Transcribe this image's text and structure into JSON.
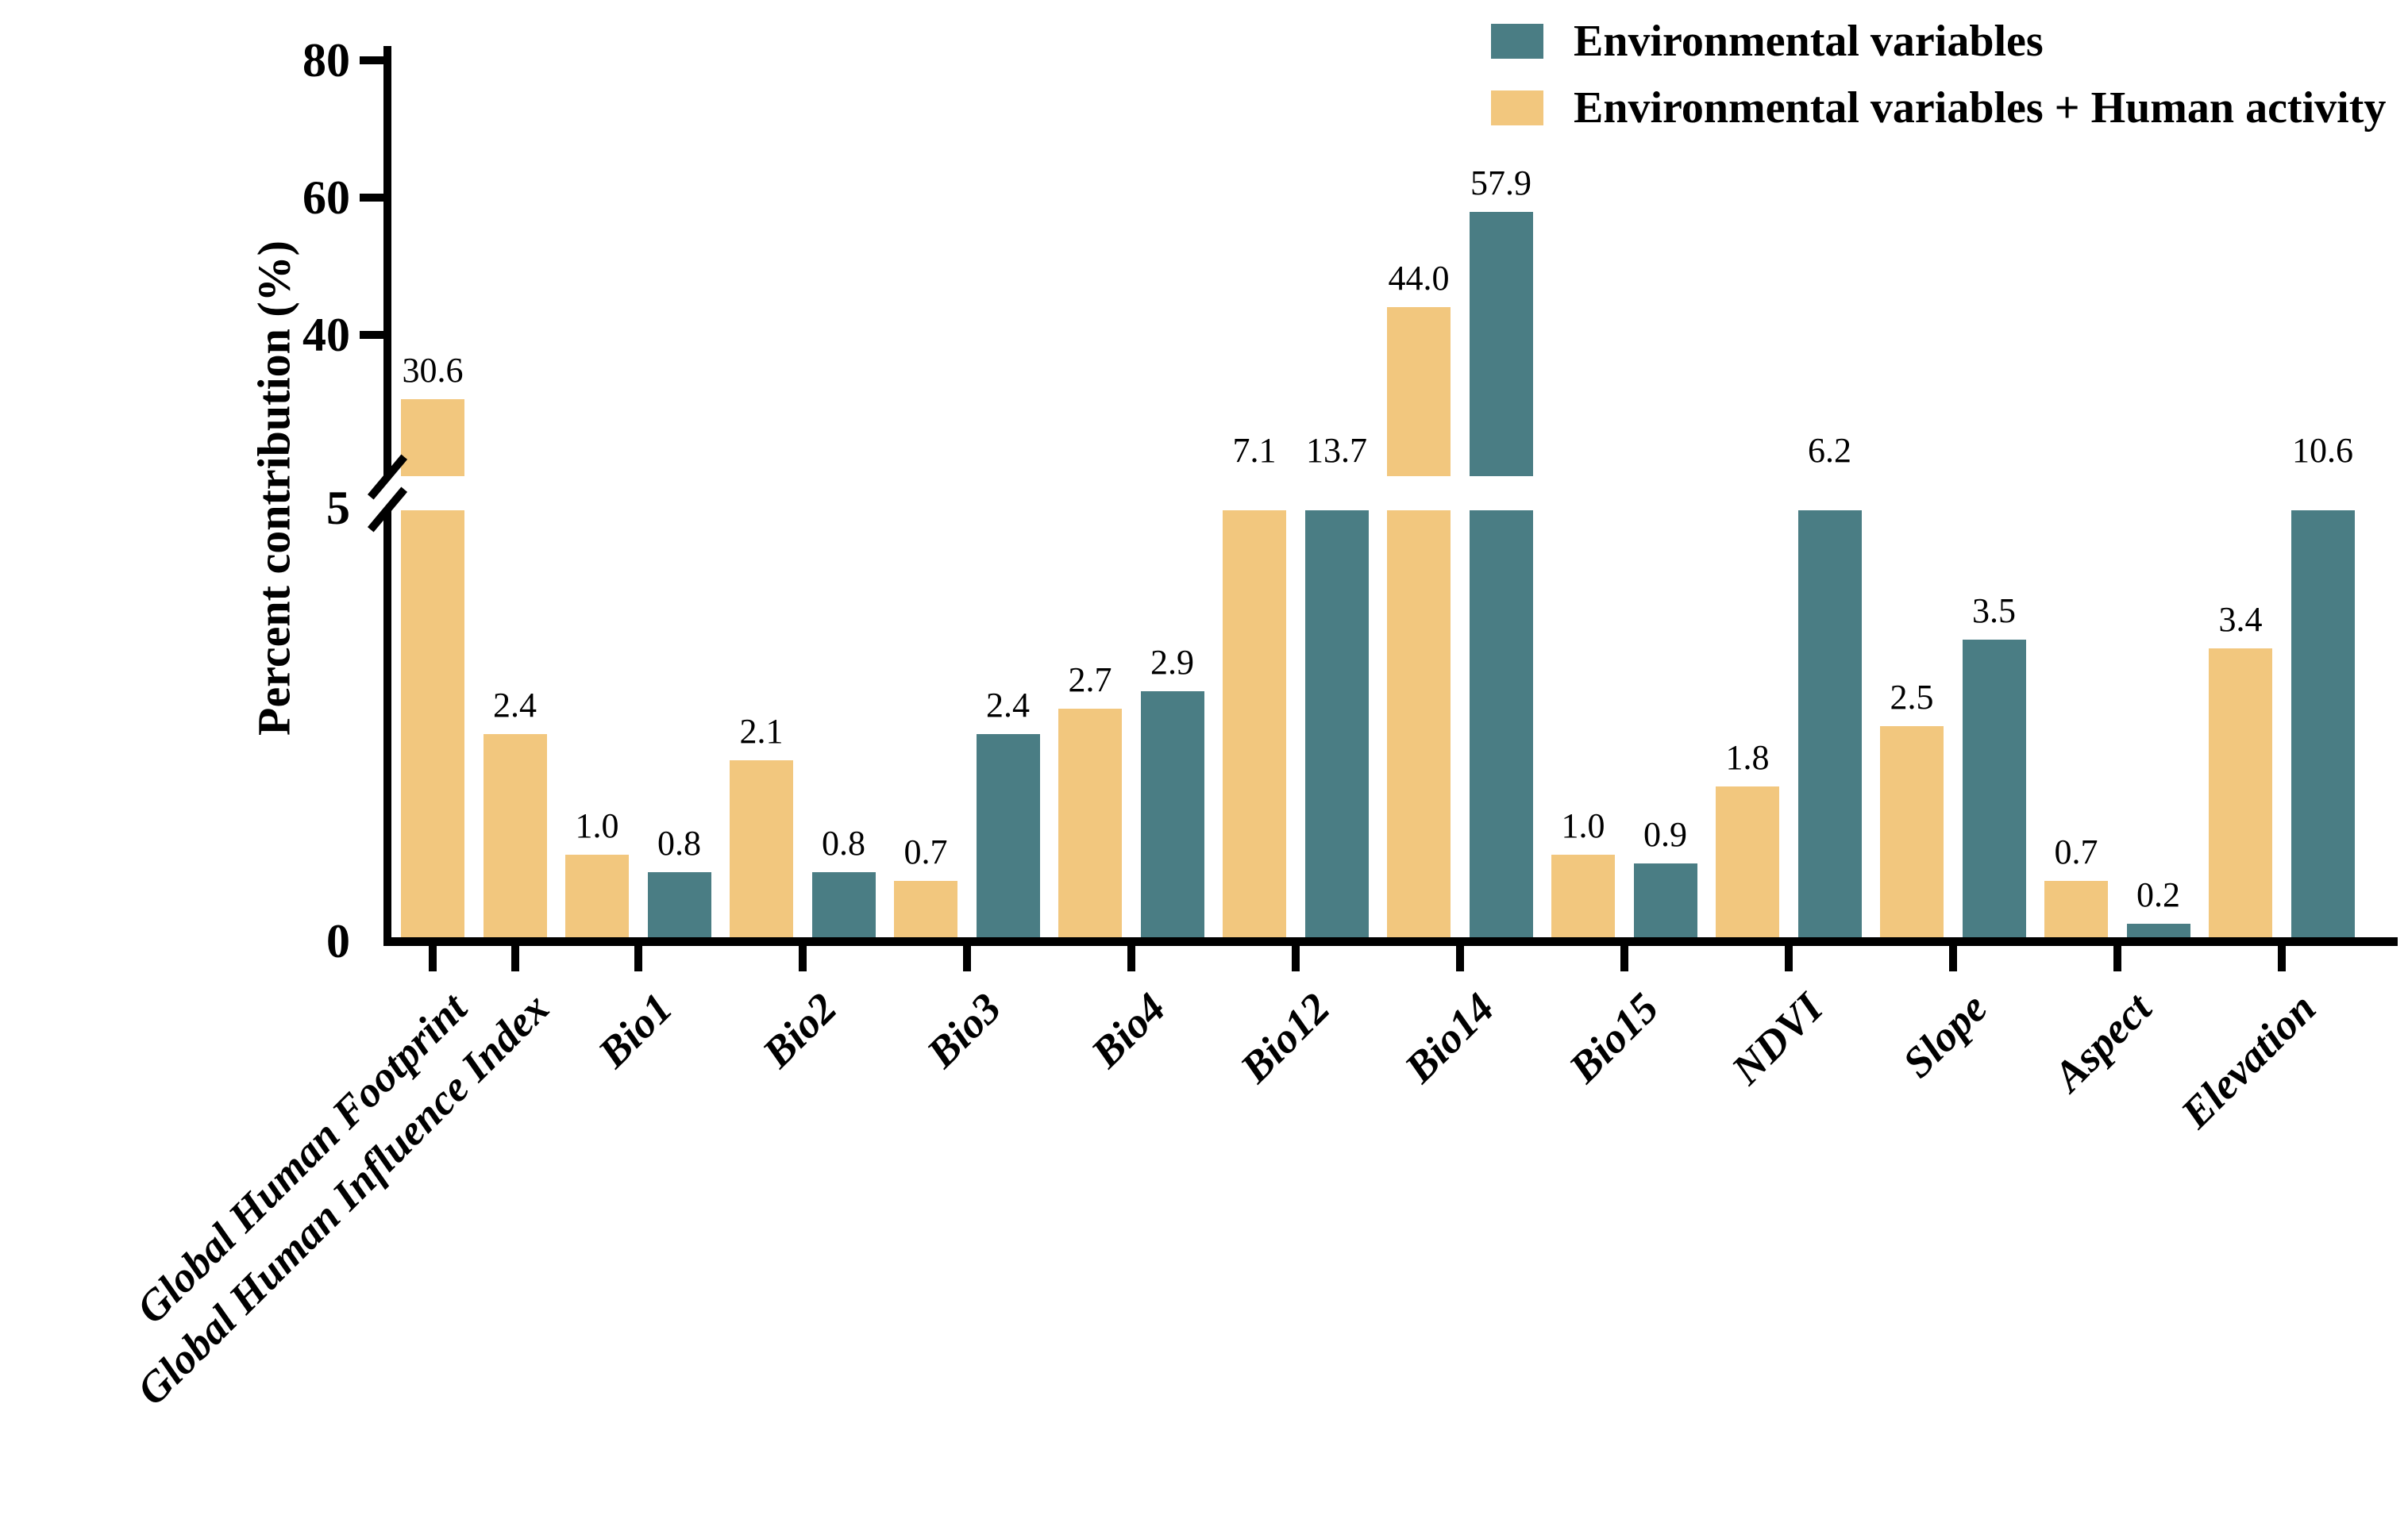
{
  "chart_data": {
    "type": "bar",
    "title": "",
    "ylabel": "Percent contribution (%)",
    "xlabel": "",
    "grid": false,
    "y_axis": {
      "lower_section_ticks": [
        0,
        5
      ],
      "upper_section_ticks": [
        40,
        60,
        80
      ],
      "axis_break": {
        "between_lower": 5,
        "between_upper": 40,
        "style": "diagonal-slashes"
      },
      "ylim_lower": [
        0,
        5
      ],
      "ylim_upper_top": 80
    },
    "legend": {
      "position": "top-right",
      "entries": [
        {
          "name": "Environmental variables",
          "color": "#4A7D84",
          "series_key": "env"
        },
        {
          "name": "Environmental variables + Human activity",
          "color": "#F2C77E",
          "series_key": "env_human"
        }
      ]
    },
    "bar_order_within_category": [
      "env_human",
      "env"
    ],
    "value_label_format": "one-decimal",
    "categories": [
      {
        "label": "Global Human Footprint",
        "env_human": 30.6,
        "env": null
      },
      {
        "label": "Global Human Influence Index",
        "env_human": 2.4,
        "env": null
      },
      {
        "label": "Bio1",
        "env_human": 1.0,
        "env": 0.8
      },
      {
        "label": "Bio2",
        "env_human": 2.1,
        "env": 0.8
      },
      {
        "label": "Bio3",
        "env_human": 0.7,
        "env": 2.4
      },
      {
        "label": "Bio4",
        "env_human": 2.7,
        "env": 2.9
      },
      {
        "label": "Bio12",
        "env_human": 7.1,
        "env": 13.7
      },
      {
        "label": "Bio14",
        "env_human": 44.0,
        "env": 57.9
      },
      {
        "label": "Bio15",
        "env_human": 1.0,
        "env": 0.9
      },
      {
        "label": "NDVI",
        "env_human": 1.8,
        "env": 6.2
      },
      {
        "label": "Slope",
        "env_human": 2.5,
        "env": 3.5
      },
      {
        "label": "Aspect",
        "env_human": 0.7,
        "env": 0.2
      },
      {
        "label": "Elevation",
        "env_human": 3.4,
        "env": 10.6
      }
    ]
  }
}
